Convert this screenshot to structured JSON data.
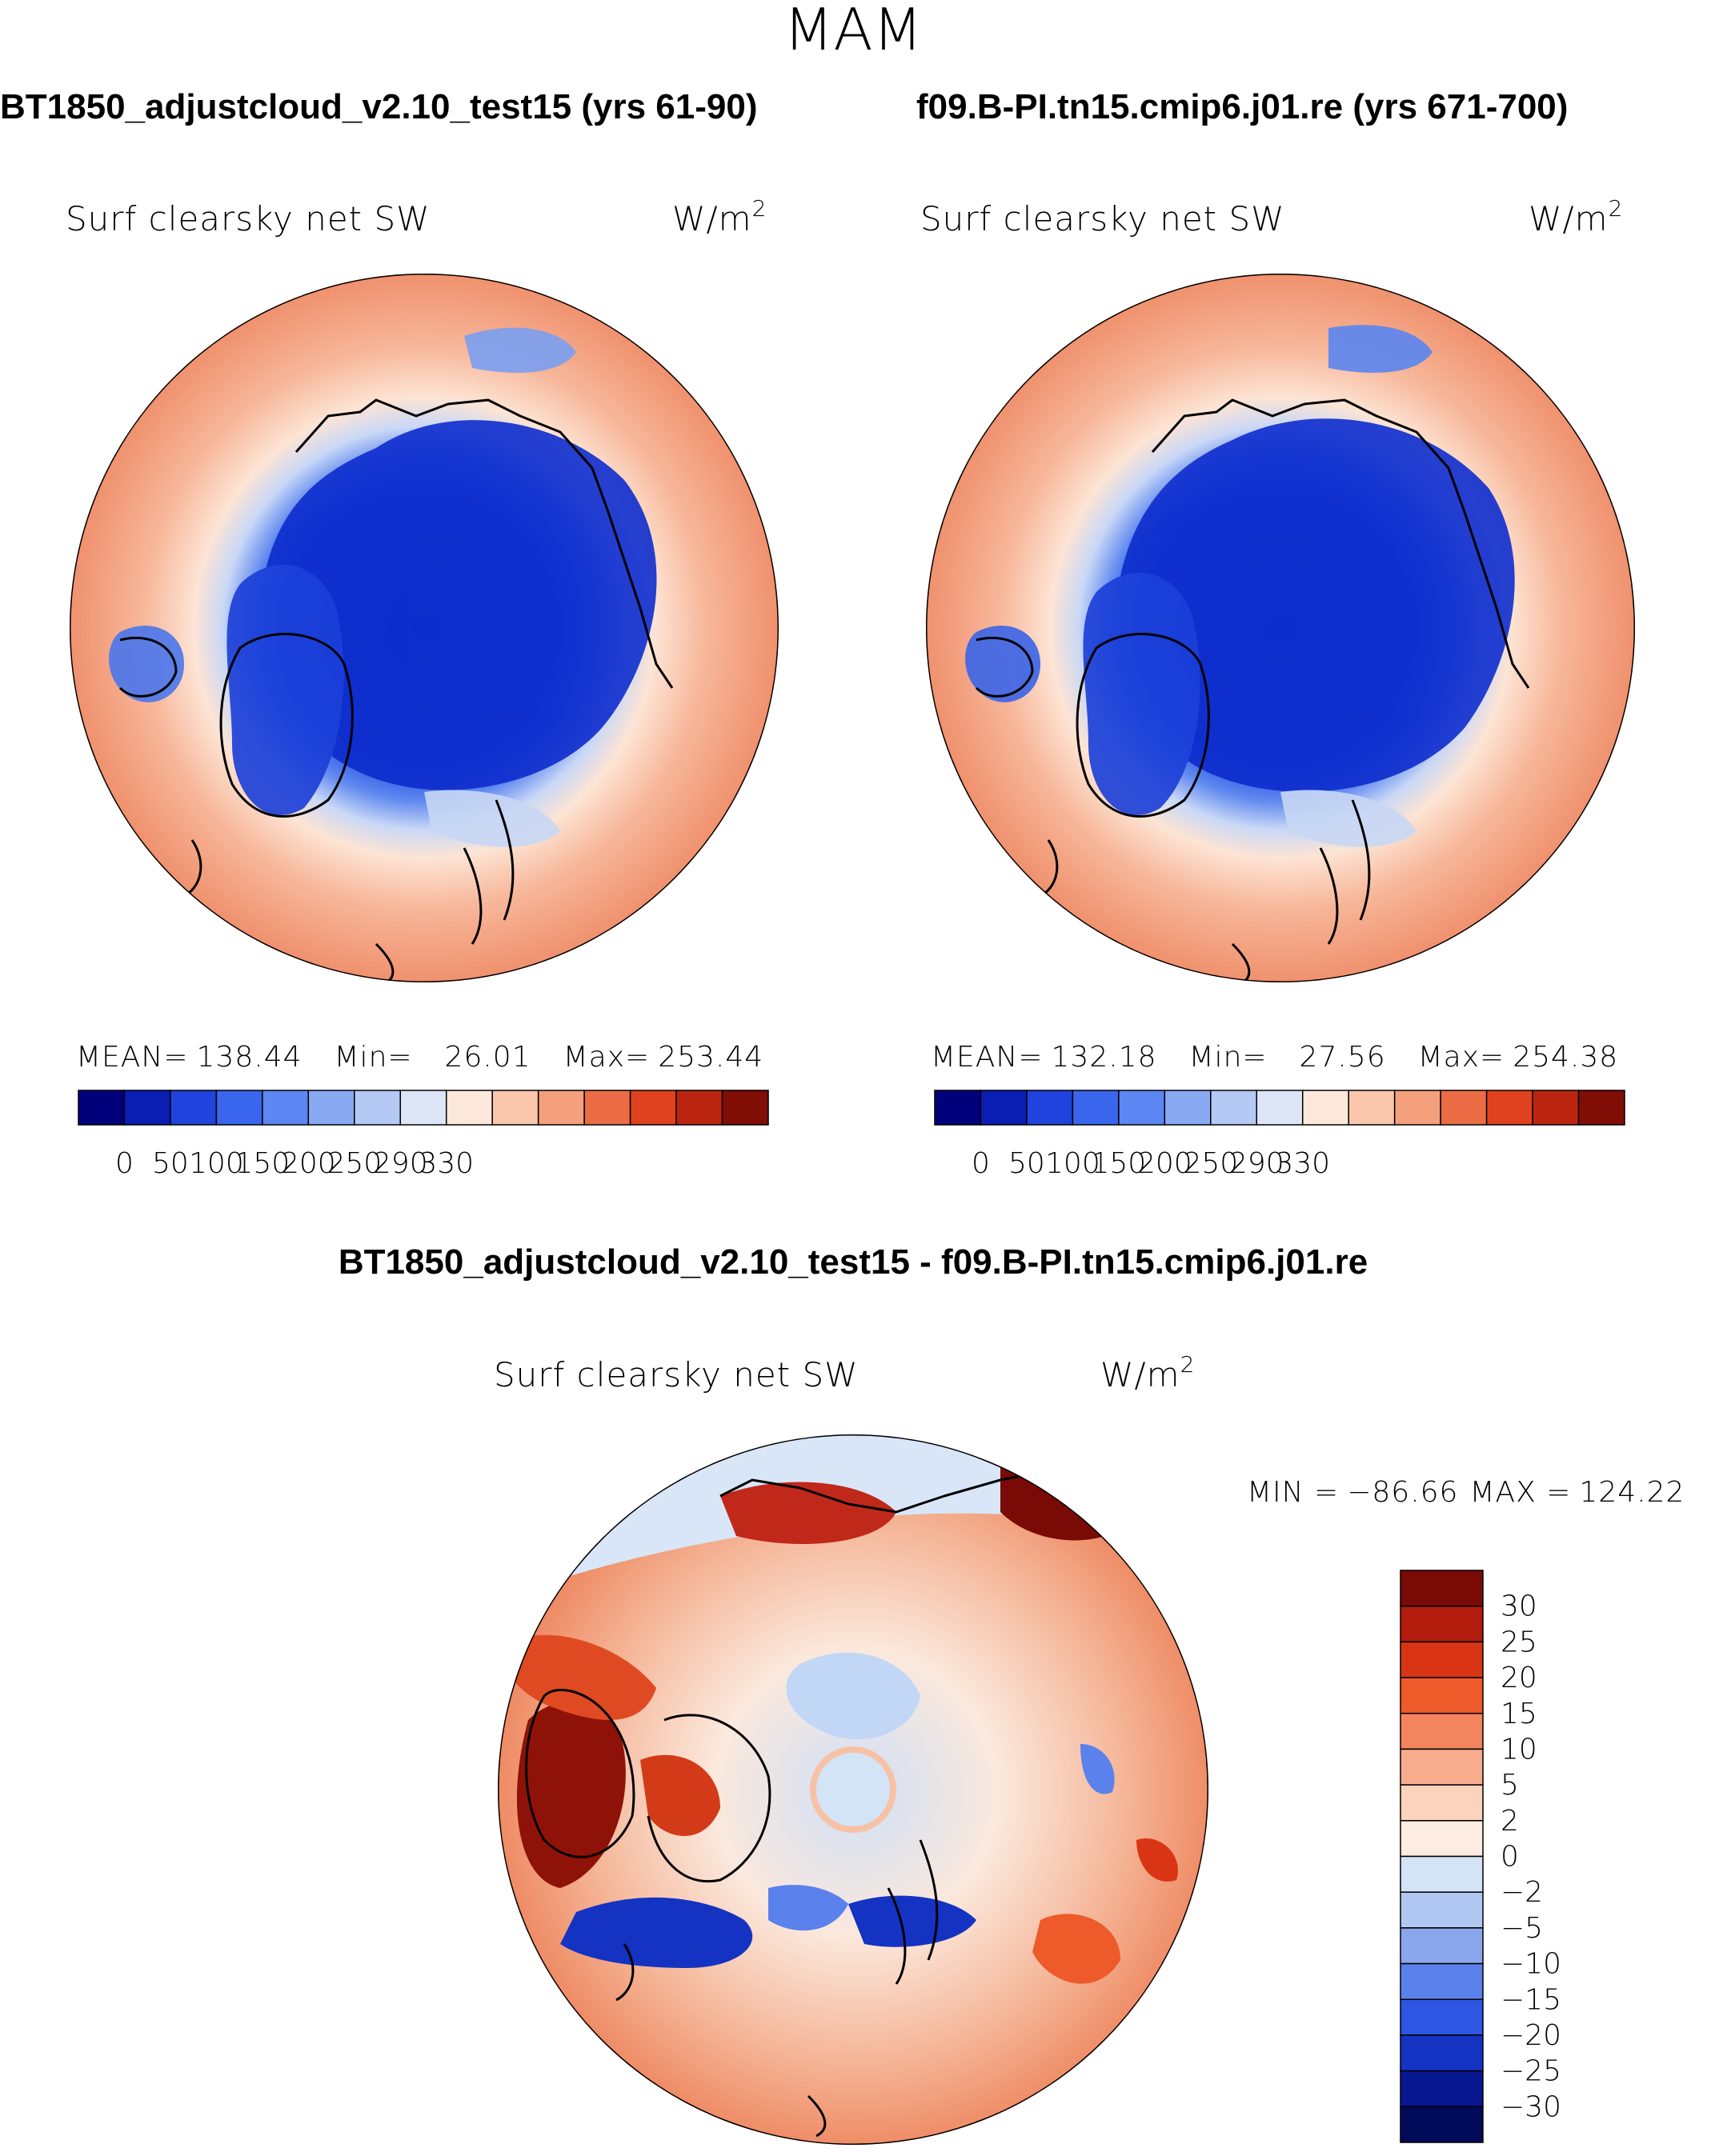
{
  "chart_data": {
    "type": "contour_map",
    "title": "MAM",
    "projection": "north polar stereographic",
    "variable_label": "Surf clearsky net SW",
    "panels": [
      {
        "id": "left",
        "case_title": "BT1850_adjustcloud_v2.10_test15 (yrs 61-90)",
        "variable": "Surf clearsky net SW",
        "units": "W/m",
        "units_exponent": "2",
        "stats": {
          "mean_label": "MEAN=",
          "mean": "138.44",
          "min_label": "Min=",
          "min": "26.01",
          "max_label": "Max=",
          "max": "253.44"
        },
        "colorbar": {
          "orientation": "horizontal",
          "tick_labels": [
            "0",
            "50",
            "100",
            "150",
            "200",
            "250",
            "290",
            "330"
          ],
          "colors": [
            "#00007a",
            "#0a1eb4",
            "#1f43dc",
            "#3a66ee",
            "#5c86f2",
            "#8aa9f3",
            "#b4c9f4",
            "#dde6f7",
            "#fde9dc",
            "#fac7ad",
            "#f4a07c",
            "#ec6d45",
            "#e0411f",
            "#bb2510",
            "#800d06"
          ]
        }
      },
      {
        "id": "right",
        "case_title": "f09.B-PI.tn15.cmip6.j01.re (yrs 671-700)",
        "variable": "Surf clearsky net SW",
        "units": "W/m",
        "units_exponent": "2",
        "stats": {
          "mean_label": "MEAN=",
          "mean": "132.18",
          "min_label": "Min=",
          "min": "27.56",
          "max_label": "Max=",
          "max": "254.38"
        },
        "colorbar": {
          "orientation": "horizontal",
          "tick_labels": [
            "0",
            "50",
            "100",
            "150",
            "200",
            "250",
            "290",
            "330"
          ],
          "colors": [
            "#00007a",
            "#0a1eb4",
            "#1f43dc",
            "#3a66ee",
            "#5c86f2",
            "#8aa9f3",
            "#b4c9f4",
            "#dde6f7",
            "#fde9dc",
            "#fac7ad",
            "#f4a07c",
            "#ec6d45",
            "#e0411f",
            "#bb2510",
            "#800d06"
          ]
        }
      },
      {
        "id": "diff",
        "case_title": "BT1850_adjustcloud_v2.10_test15 - f09.B-PI.tn15.cmip6.j01.re",
        "variable": "Surf clearsky net SW",
        "units": "W/m",
        "units_exponent": "2",
        "stats": {
          "min_label": "MIN =",
          "min": "−86.66",
          "max_label": "MAX =",
          "max": "124.22"
        },
        "colorbar": {
          "orientation": "vertical",
          "tick_labels": [
            "30",
            "25",
            "20",
            "15",
            "10",
            "5",
            "2",
            "0",
            "−2",
            "−5",
            "−10",
            "−15",
            "−20",
            "−25",
            "−30"
          ],
          "colors": [
            "#7a0a05",
            "#b31b0c",
            "#d93515",
            "#ee5a2a",
            "#f2845e",
            "#f7ad8d",
            "#fcd3bc",
            "#fdece1",
            "#d4e4f7",
            "#b1c9f2",
            "#8aa7ee",
            "#5a81ec",
            "#2f55e3",
            "#1433c2",
            "#07178f",
            "#020a5a"
          ]
        }
      }
    ]
  }
}
